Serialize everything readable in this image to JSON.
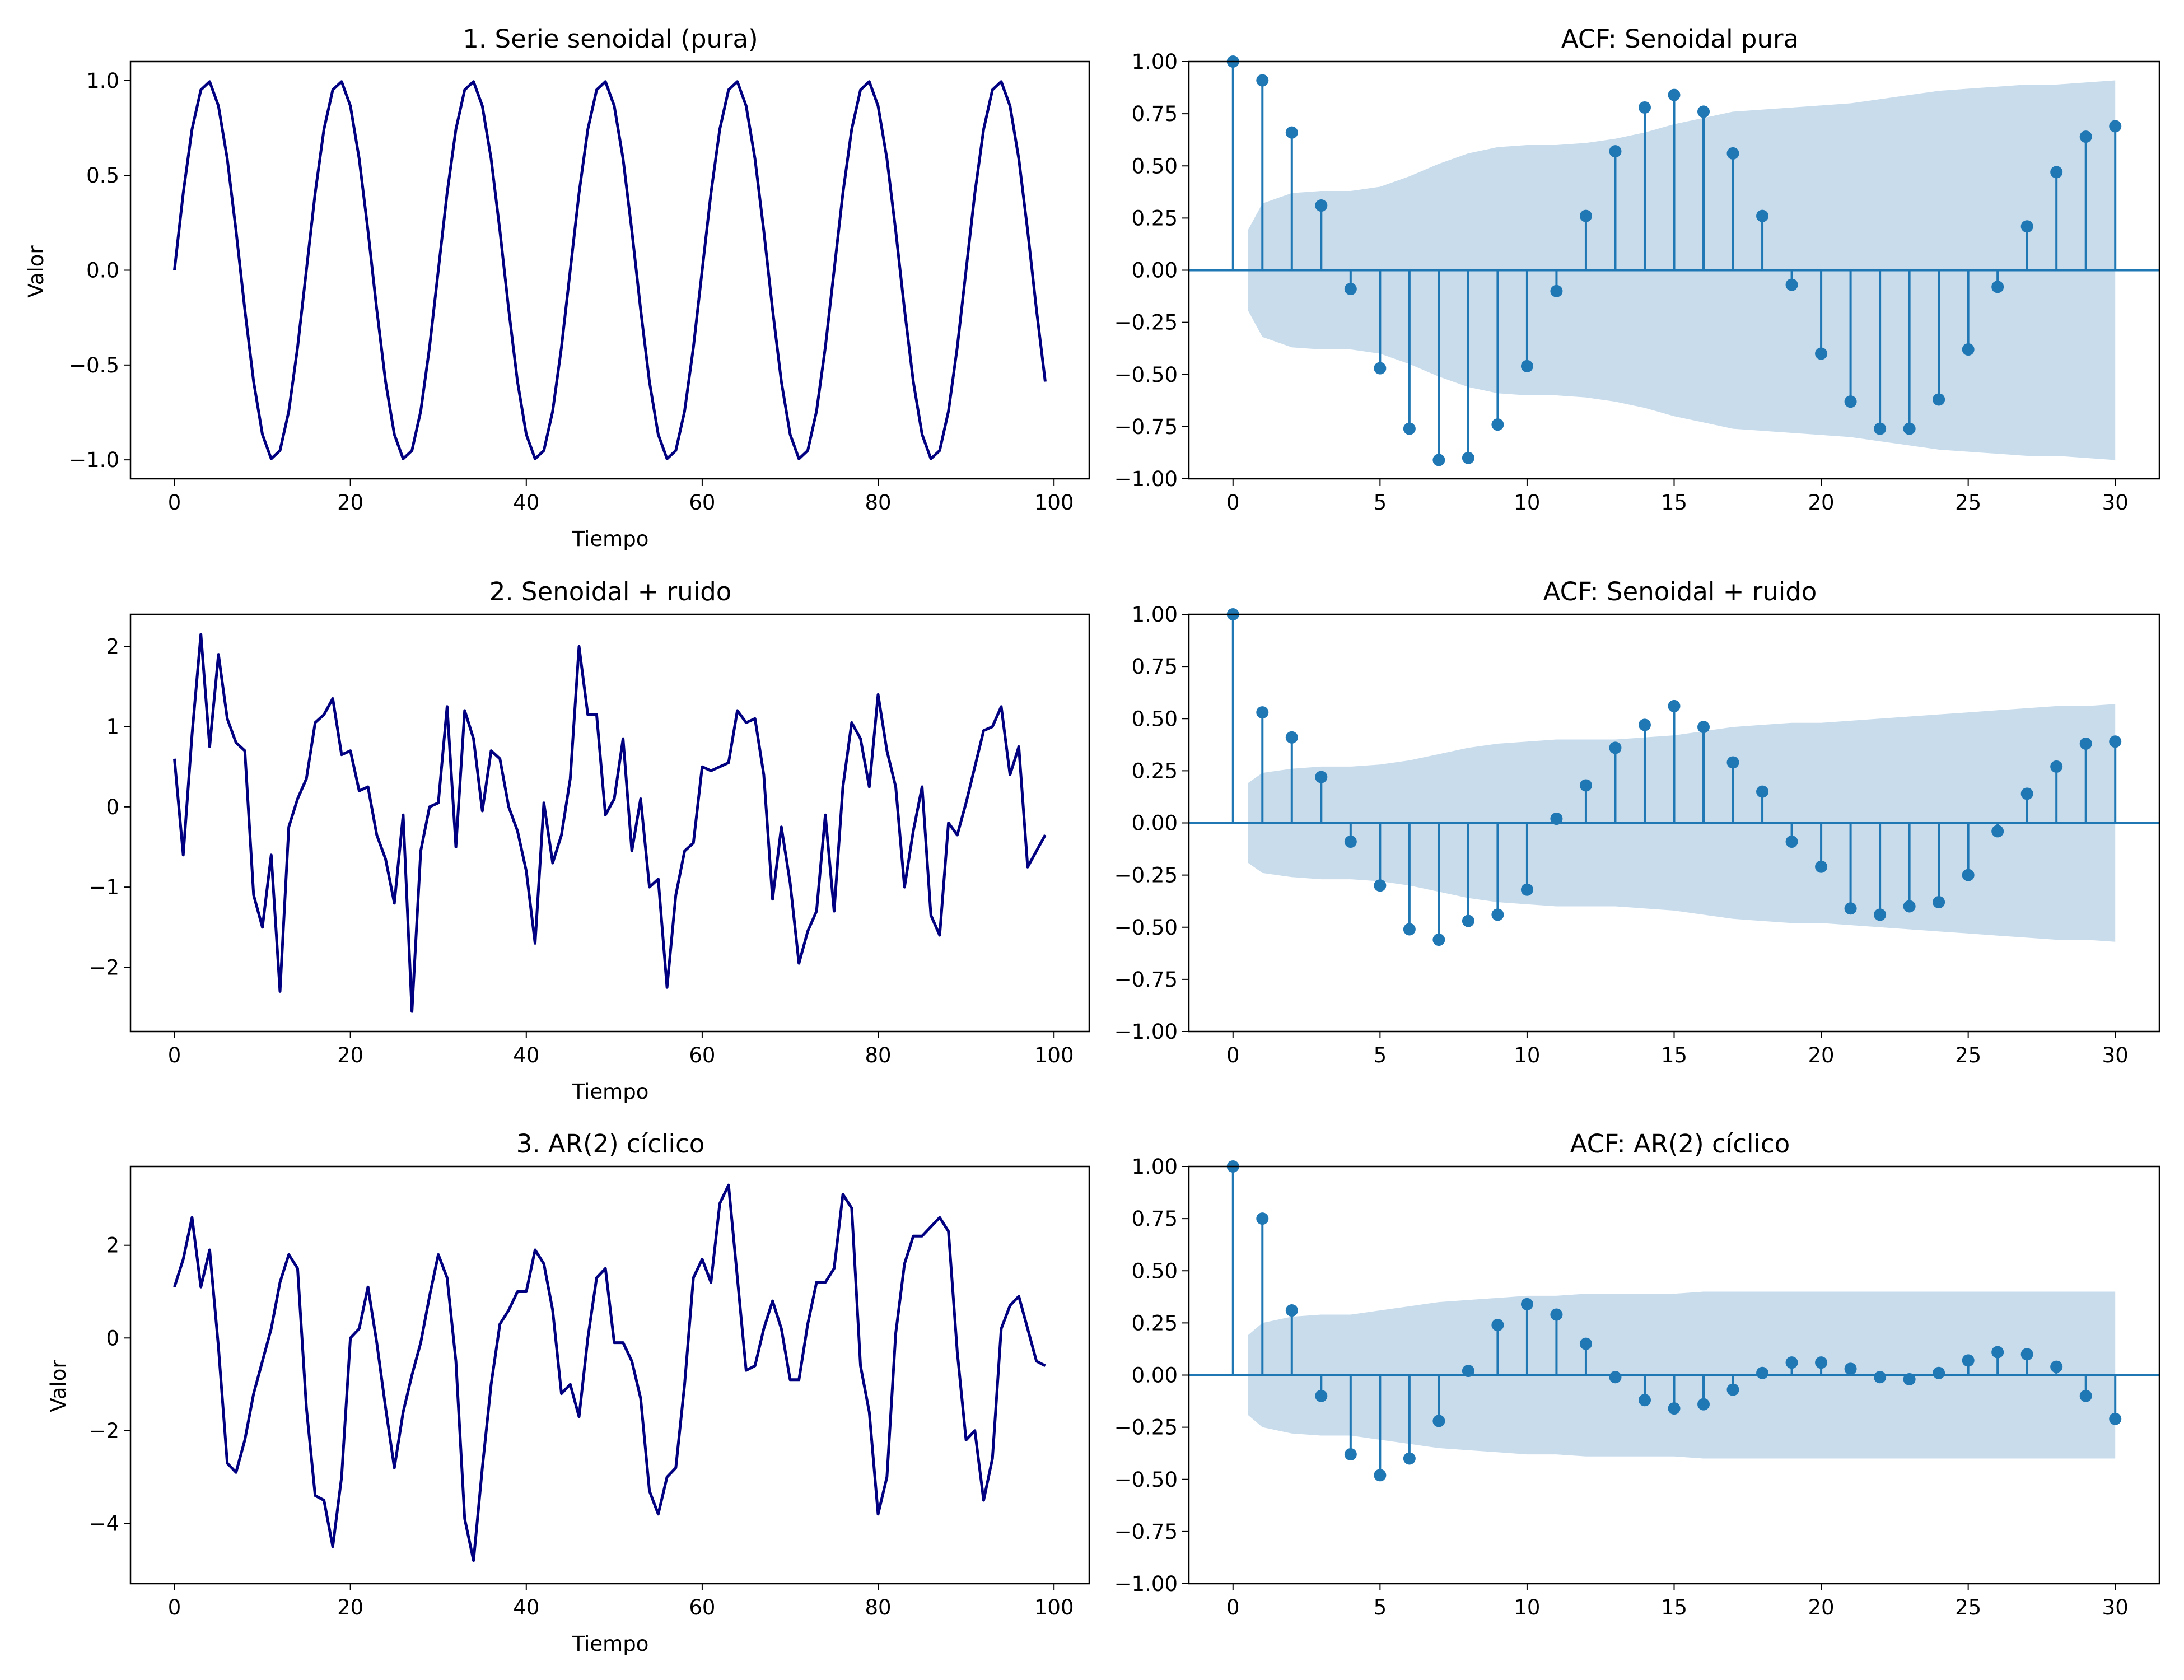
{
  "chart_data": [
    {
      "type": "line",
      "title": "1. Serie senoidal (pura)",
      "xlabel": "Tiempo",
      "ylabel": "Valor",
      "xlim": [
        -5,
        104
      ],
      "ylim": [
        -1.1,
        1.1
      ],
      "xticks": [
        0,
        20,
        40,
        60,
        80,
        100
      ],
      "yticks": [
        -1.0,
        -0.5,
        0.0,
        0.5,
        1.0
      ],
      "ytick_labels": [
        "−1.0",
        "−0.5",
        "0.0",
        "0.5",
        "1.0"
      ],
      "color": "#000080",
      "generator": {
        "kind": "sine",
        "n": 100,
        "period": 15
      },
      "series": [
        {
          "name": "senoidal",
          "values": []
        }
      ]
    },
    {
      "type": "stem",
      "title": "ACF: Senoidal pura",
      "xlim": [
        -1.5,
        31.5
      ],
      "ylim": [
        -1,
        1
      ],
      "xticks": [
        0,
        5,
        10,
        15,
        20,
        25,
        30
      ],
      "yticks": [
        -1.0,
        -0.75,
        -0.5,
        -0.25,
        0.0,
        0.25,
        0.5,
        0.75,
        1.0
      ],
      "ytick_labels": [
        "−1.00",
        "−0.75",
        "−0.50",
        "−0.25",
        "0.00",
        "0.25",
        "0.50",
        "0.75",
        "1.00"
      ],
      "color": "#1f77b4",
      "band_color": "#c5daeb",
      "lags": [
        0,
        1,
        2,
        3,
        4,
        5,
        6,
        7,
        8,
        9,
        10,
        11,
        12,
        13,
        14,
        15,
        16,
        17,
        18,
        19,
        20,
        21,
        22,
        23,
        24,
        25,
        26,
        27,
        28,
        29,
        30
      ],
      "values": [
        1.0,
        0.91,
        0.66,
        0.31,
        -0.09,
        -0.47,
        -0.76,
        -0.91,
        -0.9,
        -0.74,
        -0.46,
        -0.1,
        0.26,
        0.57,
        0.78,
        0.84,
        0.76,
        0.56,
        0.26,
        -0.07,
        -0.4,
        -0.63,
        -0.76,
        -0.76,
        -0.62,
        -0.38,
        -0.08,
        0.21,
        0.47,
        0.64,
        0.69
      ],
      "confint": [
        0.19,
        0.32,
        0.37,
        0.38,
        0.38,
        0.4,
        0.45,
        0.51,
        0.56,
        0.59,
        0.6,
        0.6,
        0.61,
        0.63,
        0.66,
        0.7,
        0.73,
        0.76,
        0.77,
        0.78,
        0.79,
        0.8,
        0.82,
        0.84,
        0.86,
        0.87,
        0.88,
        0.89,
        0.89,
        0.9,
        0.91
      ]
    },
    {
      "type": "line",
      "title": "2. Senoidal + ruido",
      "xlabel": "Tiempo",
      "ylabel": "",
      "xlim": [
        -5,
        104
      ],
      "ylim": [
        -2.8,
        2.4
      ],
      "xticks": [
        0,
        20,
        40,
        60,
        80,
        100
      ],
      "yticks": [
        -2,
        -1,
        0,
        1,
        2
      ],
      "ytick_labels": [
        "−2",
        "−1",
        "0",
        "1",
        "2"
      ],
      "color": "#000080",
      "series": [
        {
          "name": "senoidal + ruido",
          "values": [
            0.6,
            -0.6,
            0.9,
            2.15,
            0.75,
            1.9,
            1.1,
            0.8,
            0.7,
            -1.1,
            -1.5,
            -0.6,
            -2.3,
            -0.25,
            0.1,
            0.35,
            1.05,
            1.15,
            1.35,
            0.65,
            0.7,
            0.2,
            0.25,
            -0.35,
            -0.65,
            -1.2,
            -0.1,
            -2.55,
            -0.55,
            0.0,
            0.05,
            1.25,
            -0.5,
            1.2,
            0.85,
            -0.05,
            0.7,
            0.6,
            0.0,
            -0.3,
            -0.8,
            -1.7,
            0.05,
            -0.7,
            -0.35,
            0.35,
            2.0,
            1.15,
            1.15,
            -0.1,
            0.1,
            0.85,
            -0.55,
            0.1,
            -1.0,
            -0.9,
            -2.25,
            -1.1,
            -0.55,
            -0.45,
            0.5,
            0.45,
            0.5,
            0.55,
            1.2,
            1.05,
            1.1,
            0.4,
            -1.15,
            -0.25,
            -0.95,
            -1.95,
            -1.55,
            -1.3,
            -0.1,
            -1.3,
            0.25,
            1.05,
            0.85,
            0.25,
            1.4,
            0.7,
            0.25,
            -1.0,
            -0.3,
            0.25,
            -1.35,
            -1.6,
            -0.2,
            -0.35,
            0.05,
            0.5,
            0.95,
            1.0,
            1.25,
            0.4,
            0.75,
            -0.75,
            -0.55,
            -0.35
          ]
        }
      ]
    },
    {
      "type": "stem",
      "title": "ACF: Senoidal + ruido",
      "xlim": [
        -1.5,
        31.5
      ],
      "ylim": [
        -1,
        1
      ],
      "xticks": [
        0,
        5,
        10,
        15,
        20,
        25,
        30
      ],
      "yticks": [
        -1.0,
        -0.75,
        -0.5,
        -0.25,
        0.0,
        0.25,
        0.5,
        0.75,
        1.0
      ],
      "ytick_labels": [
        "−1.00",
        "−0.75",
        "−0.50",
        "−0.25",
        "0.00",
        "0.25",
        "0.50",
        "0.75",
        "1.00"
      ],
      "color": "#1f77b4",
      "band_color": "#c5daeb",
      "lags": [
        0,
        1,
        2,
        3,
        4,
        5,
        6,
        7,
        8,
        9,
        10,
        11,
        12,
        13,
        14,
        15,
        16,
        17,
        18,
        19,
        20,
        21,
        22,
        23,
        24,
        25,
        26,
        27,
        28,
        29,
        30
      ],
      "values": [
        1.0,
        0.53,
        0.41,
        0.22,
        -0.09,
        -0.3,
        -0.51,
        -0.56,
        -0.47,
        -0.44,
        -0.32,
        0.02,
        0.18,
        0.36,
        0.47,
        0.56,
        0.46,
        0.29,
        0.15,
        -0.09,
        -0.21,
        -0.41,
        -0.44,
        -0.4,
        -0.38,
        -0.25,
        -0.04,
        0.14,
        0.27,
        0.38,
        0.39
      ],
      "confint": [
        0.19,
        0.24,
        0.26,
        0.27,
        0.27,
        0.28,
        0.3,
        0.33,
        0.36,
        0.38,
        0.39,
        0.4,
        0.4,
        0.4,
        0.41,
        0.42,
        0.44,
        0.46,
        0.47,
        0.48,
        0.48,
        0.49,
        0.5,
        0.51,
        0.52,
        0.53,
        0.54,
        0.55,
        0.56,
        0.56,
        0.57
      ]
    },
    {
      "type": "line",
      "title": "3. AR(2) cíclico",
      "xlabel": "Tiempo",
      "ylabel": "Valor",
      "xlim": [
        -5,
        104
      ],
      "ylim": [
        -5.3,
        3.7
      ],
      "xticks": [
        0,
        20,
        40,
        60,
        80,
        100
      ],
      "yticks": [
        -4,
        -2,
        0,
        2
      ],
      "ytick_labels": [
        "−4",
        "−2",
        "0",
        "2"
      ],
      "color": "#000080",
      "series": [
        {
          "name": "AR(2)",
          "values": [
            1.1,
            1.7,
            2.6,
            1.1,
            1.9,
            -0.2,
            -2.7,
            -2.9,
            -2.2,
            -1.2,
            -0.5,
            0.2,
            1.2,
            1.8,
            1.5,
            -1.5,
            -3.4,
            -3.5,
            -4.5,
            -3.0,
            0.0,
            0.2,
            1.1,
            -0.1,
            -1.5,
            -2.8,
            -1.6,
            -0.8,
            -0.1,
            0.9,
            1.8,
            1.3,
            -0.5,
            -3.9,
            -4.8,
            -2.8,
            -1.0,
            0.3,
            0.6,
            1.0,
            1.0,
            1.9,
            1.6,
            0.6,
            -1.2,
            -1.0,
            -1.7,
            0.0,
            1.3,
            1.5,
            -0.1,
            -0.1,
            -0.5,
            -1.3,
            -3.3,
            -3.8,
            -3.0,
            -2.8,
            -1.0,
            1.3,
            1.7,
            1.2,
            2.9,
            3.3,
            1.3,
            -0.7,
            -0.6,
            0.2,
            0.8,
            0.2,
            -0.9,
            -0.9,
            0.3,
            1.2,
            1.2,
            1.5,
            3.1,
            2.8,
            -0.6,
            -1.6,
            -3.8,
            -3.0,
            0.1,
            1.6,
            2.2,
            2.2,
            2.4,
            2.6,
            2.3,
            -0.3,
            -2.2,
            -2.0,
            -3.5,
            -2.6,
            0.2,
            0.7,
            0.9,
            0.2,
            -0.5,
            -0.6
          ]
        }
      ]
    },
    {
      "type": "stem",
      "title": "ACF: AR(2) cíclico",
      "xlim": [
        -1.5,
        31.5
      ],
      "ylim": [
        -1,
        1
      ],
      "xticks": [
        0,
        5,
        10,
        15,
        20,
        25,
        30
      ],
      "yticks": [
        -1.0,
        -0.75,
        -0.5,
        -0.25,
        0.0,
        0.25,
        0.5,
        0.75,
        1.0
      ],
      "ytick_labels": [
        "−1.00",
        "−0.75",
        "−0.50",
        "−0.25",
        "0.00",
        "0.25",
        "0.50",
        "0.75",
        "1.00"
      ],
      "color": "#1f77b4",
      "band_color": "#c5daeb",
      "lags": [
        0,
        1,
        2,
        3,
        4,
        5,
        6,
        7,
        8,
        9,
        10,
        11,
        12,
        13,
        14,
        15,
        16,
        17,
        18,
        19,
        20,
        21,
        22,
        23,
        24,
        25,
        26,
        27,
        28,
        29,
        30
      ],
      "values": [
        1.0,
        0.75,
        0.31,
        -0.1,
        -0.38,
        -0.48,
        -0.4,
        -0.22,
        0.02,
        0.24,
        0.34,
        0.29,
        0.15,
        -0.01,
        -0.12,
        -0.16,
        -0.14,
        -0.07,
        0.01,
        0.06,
        0.06,
        0.03,
        -0.01,
        -0.02,
        0.01,
        0.07,
        0.11,
        0.1,
        0.04,
        -0.1,
        -0.21
      ],
      "confint": [
        0.19,
        0.25,
        0.28,
        0.29,
        0.29,
        0.31,
        0.33,
        0.35,
        0.36,
        0.37,
        0.38,
        0.38,
        0.39,
        0.39,
        0.39,
        0.39,
        0.4,
        0.4,
        0.4,
        0.4,
        0.4,
        0.4,
        0.4,
        0.4,
        0.4,
        0.4,
        0.4,
        0.4,
        0.4,
        0.4,
        0.4
      ]
    }
  ]
}
